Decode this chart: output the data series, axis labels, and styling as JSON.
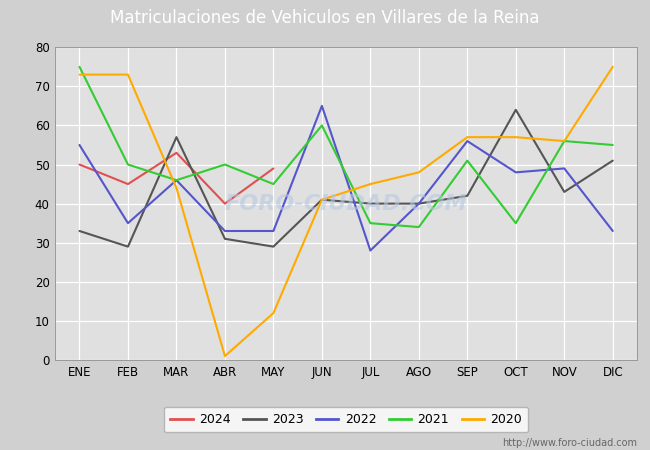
{
  "title": "Matriculaciones de Vehiculos en Villares de la Reina",
  "title_bg": "#4f86c6",
  "months": [
    "ENE",
    "FEB",
    "MAR",
    "ABR",
    "MAY",
    "JUN",
    "JUL",
    "AGO",
    "SEP",
    "OCT",
    "NOV",
    "DIC"
  ],
  "series": {
    "2024": {
      "color": "#e05050",
      "data": [
        50,
        45,
        53,
        40,
        49,
        null,
        null,
        null,
        null,
        null,
        null,
        null
      ]
    },
    "2023": {
      "color": "#555555",
      "data": [
        33,
        29,
        57,
        31,
        29,
        41,
        40,
        40,
        42,
        64,
        43,
        51
      ]
    },
    "2022": {
      "color": "#5555cc",
      "data": [
        55,
        35,
        46,
        33,
        33,
        65,
        28,
        40,
        56,
        48,
        49,
        33
      ]
    },
    "2021": {
      "color": "#33cc33",
      "data": [
        75,
        50,
        46,
        50,
        45,
        60,
        35,
        34,
        51,
        35,
        56,
        55
      ]
    },
    "2020": {
      "color": "#ffaa00",
      "data": [
        73,
        73,
        44,
        1,
        12,
        41,
        45,
        48,
        57,
        57,
        56,
        75
      ]
    }
  },
  "ylim": [
    0,
    80
  ],
  "yticks": [
    0,
    10,
    20,
    30,
    40,
    50,
    60,
    70,
    80
  ],
  "plot_bg": "#e0e0e0",
  "fig_bg": "#d0d0d0",
  "grid_color": "#ffffff",
  "watermark": "FORO-CIUDAD.COM",
  "url": "http://www.foro-ciudad.com",
  "series_order": [
    "2024",
    "2023",
    "2022",
    "2021",
    "2020"
  ]
}
